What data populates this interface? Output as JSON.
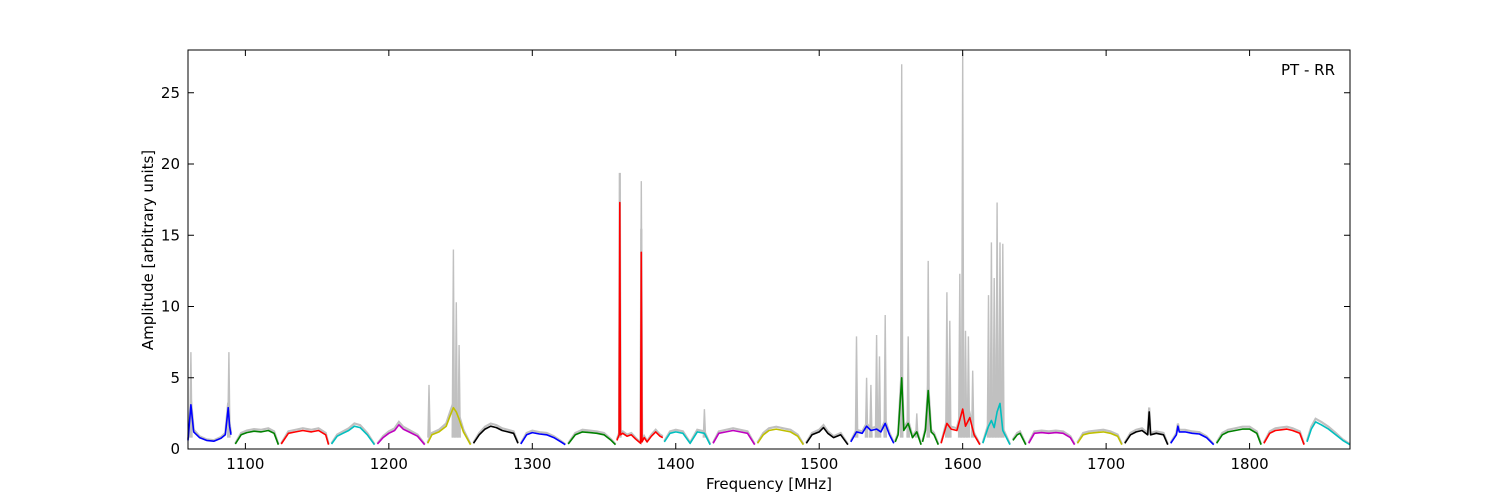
{
  "chart_data": {
    "type": "line",
    "title": "",
    "annotation": "PT - RR",
    "xlabel": "Frequency [MHz]",
    "ylabel": "Amplitude [arbitrary units]",
    "xlim": [
      1060,
      1870
    ],
    "ylim": [
      0,
      28
    ],
    "xticks": [
      1100,
      1200,
      1300,
      1400,
      1500,
      1600,
      1700,
      1800
    ],
    "yticks": [
      0,
      5,
      10,
      15,
      20,
      25
    ],
    "grid": false,
    "legend": "none",
    "background_color": "#c0c0c0",
    "spikes": [
      [
        1062,
        6.8
      ],
      [
        1088.5,
        6.8
      ],
      [
        1228,
        4.5
      ],
      [
        1245,
        14.0
      ],
      [
        1247,
        10.3
      ],
      [
        1249,
        7.3
      ],
      [
        1361,
        18.6
      ],
      [
        1376,
        18.8
      ],
      [
        1420,
        2.8
      ],
      [
        1526,
        7.9
      ],
      [
        1533,
        5.0
      ],
      [
        1536,
        4.5
      ],
      [
        1540,
        8.0
      ],
      [
        1542,
        6.5
      ],
      [
        1546,
        9.4
      ],
      [
        1557.5,
        27.0
      ],
      [
        1562,
        7.9
      ],
      [
        1568,
        2.5
      ],
      [
        1576,
        13.2
      ],
      [
        1589,
        11.0
      ],
      [
        1591,
        9.0
      ],
      [
        1598,
        12.3
      ],
      [
        1600,
        27.8
      ],
      [
        1602,
        8.3
      ],
      [
        1604,
        7.9
      ],
      [
        1607,
        5.5
      ],
      [
        1618,
        10.8
      ],
      [
        1620,
        14.5
      ],
      [
        1622,
        12.0
      ],
      [
        1624,
        17.3
      ],
      [
        1626,
        14.5
      ],
      [
        1628,
        14.4
      ]
    ],
    "series": [
      {
        "color": "#0000ff",
        "x": [
          1060,
          1062,
          1064,
          1068,
          1073,
          1078,
          1083,
          1086,
          1088,
          1089,
          1090
        ],
        "y": [
          0.6,
          3.1,
          1.2,
          0.8,
          0.6,
          0.55,
          0.75,
          1.0,
          2.9,
          1.6,
          1.0
        ]
      },
      {
        "color": "#008000",
        "x": [
          1093,
          1097,
          1101,
          1106,
          1111,
          1116,
          1120,
          1123
        ],
        "y": [
          0.35,
          1.0,
          1.15,
          1.25,
          1.2,
          1.3,
          1.1,
          0.3
        ]
      },
      {
        "color": "#ff0000",
        "x": [
          1125,
          1130,
          1135,
          1140,
          1146,
          1151,
          1156,
          1158
        ],
        "y": [
          0.35,
          1.1,
          1.2,
          1.3,
          1.2,
          1.3,
          1.0,
          0.3
        ]
      },
      {
        "color": "#00bfbf",
        "x": [
          1160,
          1164,
          1168,
          1172,
          1176,
          1180,
          1185,
          1190
        ],
        "y": [
          0.35,
          0.9,
          1.1,
          1.3,
          1.6,
          1.5,
          1.0,
          0.3
        ]
      },
      {
        "color": "#bf00bf",
        "x": [
          1192,
          1196,
          1200,
          1204,
          1207,
          1210,
          1214,
          1220,
          1225
        ],
        "y": [
          0.35,
          0.8,
          1.1,
          1.3,
          1.7,
          1.4,
          1.2,
          0.9,
          0.3
        ]
      },
      {
        "color": "#bfbf00",
        "x": [
          1227,
          1230,
          1235,
          1240,
          1243,
          1245,
          1247,
          1249,
          1252,
          1257
        ],
        "y": [
          0.4,
          1.0,
          1.2,
          1.6,
          2.4,
          2.9,
          2.6,
          2.1,
          1.2,
          0.3
        ]
      },
      {
        "color": "#000000",
        "x": [
          1259,
          1263,
          1267,
          1271,
          1275,
          1279,
          1283,
          1287,
          1290
        ],
        "y": [
          0.4,
          1.0,
          1.4,
          1.6,
          1.5,
          1.3,
          1.2,
          1.1,
          0.4
        ]
      },
      {
        "color": "#0000ff",
        "x": [
          1292,
          1296,
          1300,
          1305,
          1310,
          1315,
          1320,
          1323
        ],
        "y": [
          0.35,
          1.0,
          1.15,
          1.05,
          1.0,
          0.8,
          0.5,
          0.3
        ]
      },
      {
        "color": "#008000",
        "x": [
          1325,
          1330,
          1335,
          1340,
          1345,
          1350,
          1355,
          1358
        ],
        "y": [
          0.35,
          1.0,
          1.2,
          1.15,
          1.1,
          1.0,
          0.6,
          0.3
        ]
      },
      {
        "color": "#ff0000",
        "x": [
          1359,
          1360.5,
          1361,
          1361.5,
          1363,
          1366,
          1369,
          1372,
          1375.5,
          1376,
          1376.5,
          1378,
          1380,
          1383,
          1386,
          1389,
          1391
        ],
        "y": [
          0.6,
          1.0,
          17.3,
          1.0,
          1.1,
          0.9,
          1.0,
          0.7,
          0.4,
          13.8,
          0.5,
          0.8,
          0.5,
          0.9,
          1.2,
          0.9,
          0.8
        ]
      },
      {
        "color": "#00bfbf",
        "x": [
          1392,
          1396,
          1400,
          1405,
          1410,
          1415,
          1420,
          1424
        ],
        "y": [
          0.5,
          1.1,
          1.2,
          1.1,
          0.4,
          1.2,
          1.1,
          0.3
        ]
      },
      {
        "color": "#bf00bf",
        "x": [
          1426,
          1430,
          1435,
          1440,
          1445,
          1450,
          1455
        ],
        "y": [
          0.4,
          1.1,
          1.2,
          1.3,
          1.2,
          1.1,
          0.3
        ]
      },
      {
        "color": "#bfbf00",
        "x": [
          1457,
          1461,
          1465,
          1470,
          1475,
          1480,
          1485,
          1489
        ],
        "y": [
          0.4,
          1.0,
          1.3,
          1.4,
          1.3,
          1.2,
          0.9,
          0.3
        ]
      },
      {
        "color": "#000000",
        "x": [
          1491,
          1495,
          1500,
          1503,
          1506,
          1510,
          1515,
          1520
        ],
        "y": [
          0.4,
          1.0,
          1.2,
          1.5,
          1.1,
          0.8,
          1.0,
          0.3
        ]
      },
      {
        "color": "#0000ff",
        "x": [
          1522,
          1526,
          1530,
          1533,
          1536,
          1540,
          1543,
          1546,
          1549,
          1552
        ],
        "y": [
          0.5,
          1.2,
          1.1,
          1.6,
          1.3,
          1.4,
          1.2,
          1.8,
          1.0,
          0.4
        ]
      },
      {
        "color": "#008000",
        "x": [
          1553,
          1555,
          1557.5,
          1559,
          1562,
          1565,
          1568,
          1571
        ],
        "y": [
          0.5,
          1.0,
          5.0,
          1.3,
          1.8,
          0.8,
          1.2,
          0.3
        ]
      },
      {
        "color": "#008000",
        "x": [
          1572,
          1574,
          1576,
          1578,
          1580,
          1583
        ],
        "y": [
          0.5,
          1.3,
          4.1,
          1.2,
          1.0,
          0.3
        ]
      },
      {
        "color": "#ff0000",
        "x": [
          1585,
          1589,
          1592,
          1596,
          1600,
          1602,
          1605,
          1608,
          1612
        ],
        "y": [
          0.4,
          1.8,
          1.4,
          1.3,
          2.8,
          1.6,
          2.2,
          1.0,
          0.3
        ]
      },
      {
        "color": "#00bfbf",
        "x": [
          1614,
          1618,
          1620,
          1622,
          1624,
          1626,
          1628,
          1630,
          1633
        ],
        "y": [
          0.4,
          1.6,
          2.0,
          1.5,
          2.6,
          3.2,
          1.3,
          0.9,
          0.3
        ]
      },
      {
        "color": "#008000",
        "x": [
          1635,
          1638,
          1640,
          1644
        ],
        "y": [
          0.6,
          1.0,
          1.1,
          0.3
        ]
      },
      {
        "color": "#bf00bf",
        "x": [
          1646,
          1650,
          1655,
          1660,
          1665,
          1670,
          1675,
          1678
        ],
        "y": [
          0.4,
          1.1,
          1.15,
          1.1,
          1.15,
          1.1,
          0.8,
          0.3
        ]
      },
      {
        "color": "#bfbf00",
        "x": [
          1680,
          1684,
          1688,
          1693,
          1698,
          1703,
          1708,
          1711
        ],
        "y": [
          0.4,
          1.0,
          1.1,
          1.15,
          1.2,
          1.1,
          0.9,
          0.3
        ]
      },
      {
        "color": "#000000",
        "x": [
          1713,
          1717,
          1721,
          1725,
          1729,
          1730,
          1731,
          1735,
          1740,
          1743
        ],
        "y": [
          0.4,
          1.0,
          1.2,
          1.3,
          1.0,
          2.6,
          1.0,
          1.1,
          1.0,
          0.3
        ]
      },
      {
        "color": "#0000ff",
        "x": [
          1745,
          1749,
          1750,
          1751,
          1755,
          1760,
          1765,
          1770,
          1775
        ],
        "y": [
          0.4,
          1.0,
          1.6,
          1.2,
          1.2,
          1.1,
          1.05,
          0.8,
          0.3
        ]
      },
      {
        "color": "#008000",
        "x": [
          1777,
          1781,
          1785,
          1790,
          1795,
          1800,
          1805,
          1808
        ],
        "y": [
          0.4,
          1.0,
          1.2,
          1.3,
          1.4,
          1.4,
          1.1,
          0.3
        ]
      },
      {
        "color": "#ff0000",
        "x": [
          1810,
          1814,
          1818,
          1822,
          1826,
          1830,
          1835,
          1838
        ],
        "y": [
          0.4,
          1.1,
          1.3,
          1.35,
          1.4,
          1.3,
          1.1,
          0.3
        ]
      },
      {
        "color": "#00bfbf",
        "x": [
          1840,
          1843,
          1846,
          1850,
          1855,
          1860,
          1865,
          1870
        ],
        "y": [
          0.5,
          1.4,
          1.9,
          1.7,
          1.4,
          1.0,
          0.6,
          0.3
        ]
      }
    ]
  }
}
